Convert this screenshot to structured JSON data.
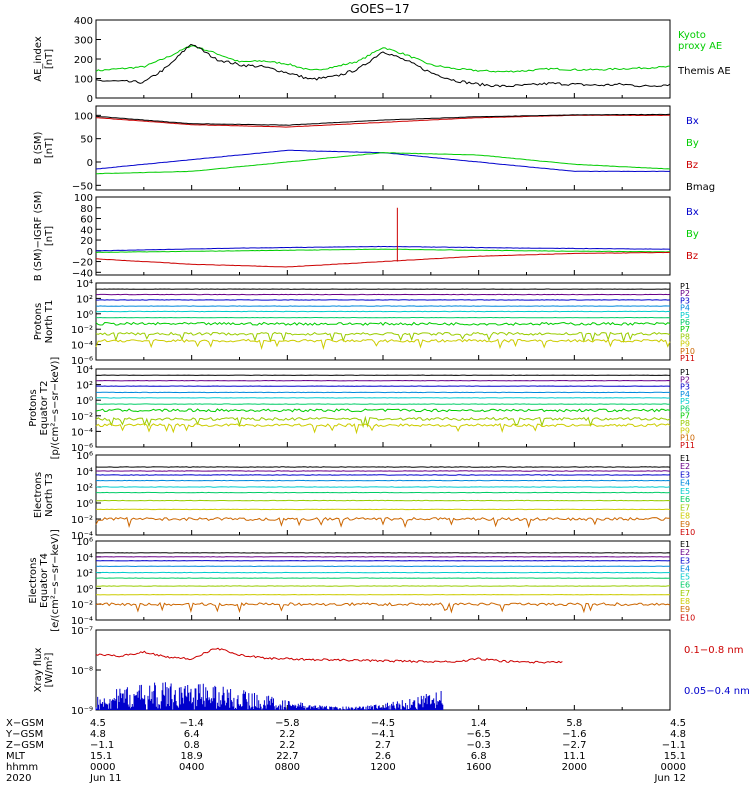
{
  "title": "GOES−17",
  "colors": {
    "black": "#000000",
    "red": "#cc0000",
    "green": "#00cc00",
    "blue": "#0000cc",
    "proton": [
      "#000000",
      "#6a0088",
      "#0000cc",
      "#0088dd",
      "#00cccc",
      "#00cc66",
      "#00cc00",
      "#99cc00",
      "#cccc00",
      "#cc6600",
      "#cc0000"
    ],
    "electron": [
      "#000000",
      "#6a0088",
      "#0000cc",
      "#0088dd",
      "#00cccc",
      "#00cc66",
      "#99cc00",
      "#cccc00",
      "#cc6600",
      "#cc0000"
    ]
  },
  "chart_data": [
    {
      "type": "line",
      "ylabel": [
        "AE_index",
        "[nT]"
      ],
      "ylim": [
        0,
        400
      ],
      "yticks": [
        "0",
        "100",
        "200",
        "300",
        "400"
      ],
      "series": [
        {
          "name": "Kyoto proxy AE",
          "label_lines": [
            "Kyoto",
            "proxy AE"
          ],
          "color": "green",
          "x": [
            0,
            1,
            2,
            3,
            4,
            5,
            6,
            7,
            8,
            9,
            10,
            11,
            12,
            13,
            14,
            15,
            16,
            17,
            18,
            19,
            20,
            21,
            22,
            23,
            24
          ],
          "values": [
            140,
            150,
            160,
            210,
            270,
            230,
            185,
            190,
            175,
            140,
            160,
            190,
            260,
            220,
            170,
            150,
            140,
            135,
            140,
            150,
            145,
            145,
            150,
            155,
            160
          ]
        },
        {
          "name": "Themis AE",
          "label_lines": [
            "Themis AE"
          ],
          "color": "black",
          "x": [
            0,
            1,
            2,
            3,
            4,
            5,
            6,
            7,
            8,
            9,
            10,
            11,
            12,
            13,
            14,
            15,
            16,
            17,
            18,
            19,
            20,
            21,
            22,
            23,
            24
          ],
          "values": [
            90,
            85,
            80,
            160,
            280,
            200,
            170,
            160,
            130,
            95,
            110,
            150,
            240,
            190,
            130,
            90,
            70,
            60,
            65,
            75,
            70,
            65,
            70,
            60,
            70
          ]
        }
      ]
    },
    {
      "type": "line",
      "ylabel": [
        "B (SM)",
        "[nT]"
      ],
      "ylim": [
        -60,
        120
      ],
      "yticks": [
        "−50",
        "0",
        "50",
        "100"
      ],
      "ytick_values": [
        -50,
        0,
        50,
        100
      ],
      "series": [
        {
          "name": "Bx",
          "color": "blue",
          "x": [
            0,
            4,
            8,
            12,
            16,
            20,
            24
          ],
          "values": [
            -15,
            5,
            25,
            20,
            0,
            -20,
            -20
          ]
        },
        {
          "name": "By",
          "color": "green",
          "x": [
            0,
            4,
            8,
            12,
            16,
            20,
            24
          ],
          "values": [
            -25,
            -20,
            0,
            20,
            15,
            -5,
            -15
          ]
        },
        {
          "name": "Bz",
          "color": "red",
          "x": [
            0,
            4,
            8,
            12,
            16,
            20,
            24
          ],
          "values": [
            95,
            80,
            75,
            85,
            95,
            100,
            100
          ]
        },
        {
          "name": "Bmag",
          "color": "black",
          "x": [
            0,
            4,
            8,
            12,
            16,
            20,
            24
          ],
          "values": [
            98,
            82,
            79,
            90,
            97,
            101,
            102
          ]
        }
      ]
    },
    {
      "type": "line",
      "ylabel": [
        "B (SM)−IGRF (SM)",
        "[nT]"
      ],
      "ylim": [
        -45,
        100
      ],
      "yticks": [
        "−40",
        "−20",
        "0",
        "20",
        "40",
        "60",
        "80",
        "100"
      ],
      "ytick_values": [
        -40,
        -20,
        0,
        20,
        40,
        60,
        80,
        100
      ],
      "series": [
        {
          "name": "Bx",
          "color": "blue",
          "x": [
            0,
            6,
            12,
            18,
            24
          ],
          "values": [
            0,
            5,
            8,
            5,
            3
          ]
        },
        {
          "name": "By",
          "color": "green",
          "x": [
            0,
            6,
            12,
            18,
            24
          ],
          "values": [
            -3,
            0,
            3,
            0,
            -2
          ]
        },
        {
          "name": "Bz",
          "color": "red",
          "x": [
            0,
            4,
            8,
            12,
            16,
            20,
            24
          ],
          "values": [
            -15,
            -25,
            -30,
            -20,
            -10,
            -5,
            -3
          ]
        }
      ]
    },
    {
      "type": "line",
      "yscale": "log",
      "ylabel": [
        "Protons",
        "North T1"
      ],
      "ylog": [
        -6,
        4
      ],
      "yticks": [
        "10⁻⁶",
        "10⁻⁴",
        "10⁻²",
        "10⁰",
        "10²",
        "10⁴"
      ],
      "ytick_exp": [
        -6,
        -4,
        -2,
        0,
        2,
        4
      ],
      "series": [
        {
          "name": "P1",
          "log10": 3.2
        },
        {
          "name": "P2",
          "log10": 2.5
        },
        {
          "name": "P3",
          "log10": 1.8
        },
        {
          "name": "P4",
          "log10": 1.0
        },
        {
          "name": "P5",
          "log10": 0.3
        },
        {
          "name": "P6",
          "log10": -0.5
        },
        {
          "name": "P7",
          "log10": -1.3
        },
        {
          "name": "P8",
          "log10": -2.6
        },
        {
          "name": "P9",
          "log10": -3.5
        },
        {
          "name": "P10",
          "log10": null
        },
        {
          "name": "P11",
          "log10": null
        }
      ]
    },
    {
      "type": "line",
      "yscale": "log",
      "ylabel": [
        "Protons",
        "Equator T2",
        "[p/(cm²−s−sr−keV)]"
      ],
      "ylog": [
        -6,
        4
      ],
      "yticks": [
        "10⁻⁶",
        "10⁻⁴",
        "10⁻²",
        "10⁰",
        "10²",
        "10⁴"
      ],
      "ytick_exp": [
        -6,
        -4,
        -2,
        0,
        2,
        4
      ],
      "series": [
        {
          "name": "P1",
          "log10": 3.2
        },
        {
          "name": "P2",
          "log10": 2.5
        },
        {
          "name": "P3",
          "log10": 1.8
        },
        {
          "name": "P4",
          "log10": 1.0
        },
        {
          "name": "P5",
          "log10": 0.3
        },
        {
          "name": "P6",
          "log10": -0.5
        },
        {
          "name": "P7",
          "log10": -1.3
        },
        {
          "name": "P8",
          "log10": -2.4
        },
        {
          "name": "P9",
          "log10": -3.2
        },
        {
          "name": "P10",
          "log10": null
        },
        {
          "name": "P11",
          "log10": null
        }
      ]
    },
    {
      "type": "line",
      "yscale": "log",
      "ylabel": [
        "Electrons",
        "North T3"
      ],
      "ylog": [
        -4,
        6
      ],
      "yticks": [
        "10⁻⁴",
        "10⁻²",
        "10⁰",
        "10²",
        "10⁴",
        "10⁶"
      ],
      "ytick_exp": [
        -4,
        -2,
        0,
        2,
        4,
        6
      ],
      "series": [
        {
          "name": "E1",
          "log10": 4.5
        },
        {
          "name": "E2",
          "log10": 4.0
        },
        {
          "name": "E3",
          "log10": 3.5
        },
        {
          "name": "E4",
          "log10": 2.8
        },
        {
          "name": "E5",
          "log10": 2.0
        },
        {
          "name": "E6",
          "log10": 1.3
        },
        {
          "name": "E7",
          "log10": 0.3
        },
        {
          "name": "E8",
          "log10": -0.8
        },
        {
          "name": "E9",
          "log10": -2.0
        },
        {
          "name": "E10",
          "log10": null
        }
      ]
    },
    {
      "type": "line",
      "yscale": "log",
      "ylabel": [
        "Electrons",
        "Equator T4",
        "[e/(cm²−s−sr−keV)]"
      ],
      "ylog": [
        -4,
        6
      ],
      "yticks": [
        "10⁻⁴",
        "10⁻²",
        "10⁰",
        "10²",
        "10⁴",
        "10⁶"
      ],
      "ytick_exp": [
        -4,
        -2,
        0,
        2,
        4,
        6
      ],
      "series": [
        {
          "name": "E1",
          "log10": 4.5
        },
        {
          "name": "E2",
          "log10": 4.0
        },
        {
          "name": "E3",
          "log10": 3.5
        },
        {
          "name": "E4",
          "log10": 2.8
        },
        {
          "name": "E5",
          "log10": 2.0
        },
        {
          "name": "E6",
          "log10": 1.3
        },
        {
          "name": "E7",
          "log10": 0.3
        },
        {
          "name": "E8",
          "log10": -0.8
        },
        {
          "name": "E9",
          "log10": -2.0
        },
        {
          "name": "E10",
          "log10": null
        }
      ]
    },
    {
      "type": "line",
      "yscale": "log",
      "ylabel": [
        "Xray flux",
        "[W/m²]"
      ],
      "ylog": [
        -9,
        -7
      ],
      "yticks": [
        "10⁻⁹",
        "10⁻⁸",
        "10⁻⁷"
      ],
      "ytick_exp": [
        -9,
        -8,
        -7
      ],
      "series": [
        {
          "name": "0.1−0.8 nm",
          "color": "red",
          "x": [
            0,
            1,
            2,
            3,
            4,
            5,
            6,
            7,
            8,
            9,
            10,
            11,
            12,
            13,
            14,
            15,
            16,
            17,
            18,
            19,
            19.5
          ],
          "values": [
            -7.62,
            -7.65,
            -7.55,
            -7.68,
            -7.72,
            -7.45,
            -7.62,
            -7.7,
            -7.72,
            -7.74,
            -7.75,
            -7.76,
            -7.77,
            -7.78,
            -7.79,
            -7.8,
            -7.72,
            -7.78,
            -7.8,
            -7.81,
            -7.8
          ]
        },
        {
          "name": "0.05−0.4 nm",
          "color": "blue",
          "x_start": 0,
          "x_end": 14.5
        }
      ]
    }
  ],
  "xaxis": {
    "range": [
      0,
      24
    ],
    "rows": [
      {
        "label": "X−GSM",
        "values": [
          "4.5",
          "−1.4",
          "−5.8",
          "−4.5",
          "1.4",
          "5.8",
          "4.5"
        ]
      },
      {
        "label": "Y−GSM",
        "values": [
          "4.8",
          "6.4",
          "2.2",
          "−4.1",
          "−6.5",
          "−1.6",
          "4.8"
        ]
      },
      {
        "label": "Z−GSM",
        "values": [
          "−1.1",
          "0.8",
          "2.2",
          "2.7",
          "−0.3",
          "−2.7",
          "−1.1"
        ]
      },
      {
        "label": "MLT",
        "values": [
          "15.1",
          "18.9",
          "22.7",
          "2.6",
          "6.8",
          "11.1",
          "15.1"
        ]
      },
      {
        "label": "hhmm",
        "values": [
          "0000",
          "0400",
          "0800",
          "1200",
          "1600",
          "2000",
          "0000"
        ]
      },
      {
        "label": "2020",
        "values": [
          "Jun 11",
          "",
          "",
          "",
          "",
          "",
          "Jun 12"
        ]
      }
    ]
  }
}
